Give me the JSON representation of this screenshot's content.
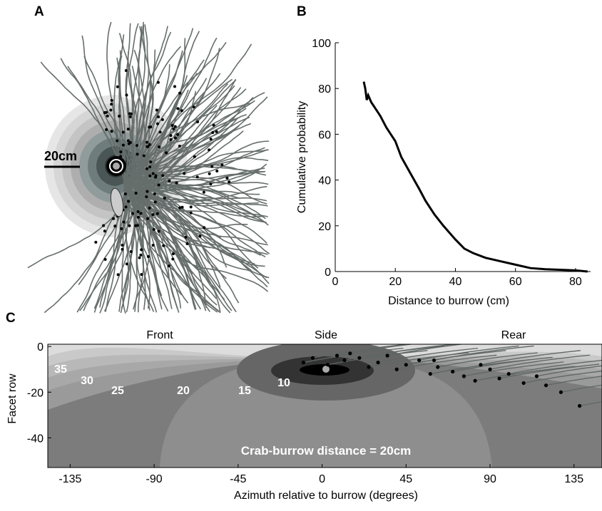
{
  "chart_data": [
    {
      "type": "drawing",
      "panel": "A",
      "scale_label": "20cm"
    },
    {
      "type": "line",
      "panel": "B",
      "xlabel": "Distance to burrow (cm)",
      "ylabel": "Cumulative probability",
      "x": [
        9.5,
        10,
        10.5,
        11,
        12,
        13,
        15,
        17,
        20,
        22,
        25,
        28,
        30,
        33,
        36,
        40,
        43,
        46,
        50,
        55,
        60,
        65,
        70,
        80,
        84
      ],
      "values": [
        83,
        80,
        75,
        77,
        74,
        72,
        68,
        63,
        57,
        50,
        43,
        36,
        31,
        25,
        20,
        14,
        10,
        8,
        6,
        4.5,
        3,
        1.5,
        1,
        0.5,
        0
      ],
      "color": "#000000",
      "xlim": [
        0,
        85
      ],
      "ylim": [
        0,
        100
      ],
      "xticks": [
        0,
        20,
        40,
        60,
        80
      ],
      "yticks": [
        0,
        20,
        40,
        60,
        80,
        100
      ]
    },
    {
      "type": "contour",
      "panel": "C",
      "xlabel": "Azimuth relative to burrow (degrees)",
      "ylabel": "Facet row",
      "regions": [
        "Front",
        "Side",
        "Rear"
      ],
      "contour_levels": [
        35,
        30,
        25,
        20,
        15,
        10
      ],
      "annotation": "Crab-burrow distance = 20cm",
      "xlim": [
        -147,
        150
      ],
      "ylim": [
        -53,
        1
      ],
      "xticks": [
        -135,
        -90,
        -45,
        0,
        45,
        90,
        135
      ],
      "yticks": [
        0,
        -20,
        -40
      ],
      "points_x": [
        -10,
        -5,
        3,
        8,
        12,
        15,
        20,
        25,
        30,
        35,
        40,
        45,
        52,
        58,
        62,
        70,
        76,
        82,
        90,
        95,
        100,
        108,
        115,
        120,
        128,
        138,
        60,
        85
      ],
      "points_y": [
        -7,
        -5,
        -8,
        -4,
        -6,
        -3,
        -5,
        -9,
        -7,
        -4,
        -10,
        -8,
        -6,
        -12,
        -9,
        -11,
        -13,
        -15,
        -10,
        -14,
        -12,
        -16,
        -13,
        -17,
        -20,
        -26,
        -6,
        -8
      ]
    }
  ]
}
